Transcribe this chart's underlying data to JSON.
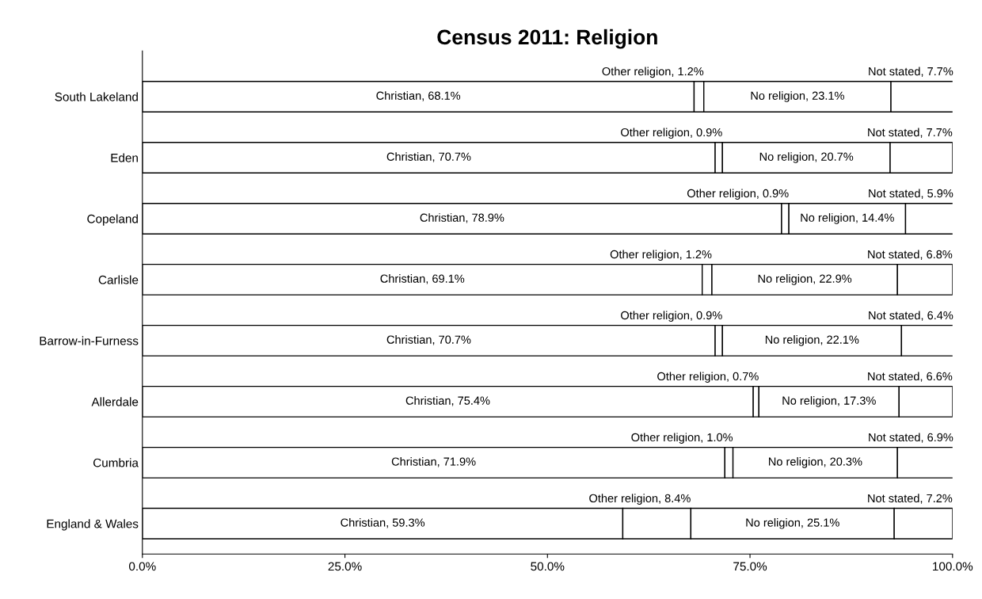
{
  "chart_data": {
    "type": "bar",
    "orientation": "horizontal",
    "stacked": true,
    "title": "Census 2011: Religion",
    "categories": [
      "South Lakeland",
      "Eden",
      "Copeland",
      "Carlisle",
      "Barrow-in-Furness",
      "Allerdale",
      "Cumbria",
      "England & Wales"
    ],
    "series": [
      {
        "color": "#ffffff",
        "values": [
          68.1,
          70.7,
          78.9,
          69.1,
          70.7,
          75.4,
          71.9,
          59.3
        ],
        "value_labels": [
          "Christian, 68.1%",
          "Christian, 70.7%",
          "Christian, 78.9%",
          "Christian, 69.1%",
          "Christian, 70.7%",
          "Christian, 75.4%",
          "Christian, 71.9%",
          "Christian, 59.3%"
        ]
      },
      {
        "color": "#ffffff",
        "values": [
          1.2,
          0.9,
          0.9,
          1.2,
          0.9,
          0.7,
          1.0,
          8.4
        ],
        "value_labels": [
          "Other religion, 1.2%",
          "Other religion, 0.9%",
          "Other religion, 0.9%",
          "Other religion, 1.2%",
          "Other religion, 0.9%",
          "Other religion, 0.7%",
          "Other religion, 1.0%",
          "Other religion, 8.4%"
        ]
      },
      {
        "color": "#ffffff",
        "values": [
          23.1,
          20.7,
          14.4,
          22.9,
          22.1,
          17.3,
          20.3,
          25.1
        ],
        "value_labels": [
          "No religion, 23.1%",
          "No religion, 20.7%",
          "No religion, 14.4%",
          "No religion, 22.9%",
          "No religion, 22.1%",
          "No religion, 17.3%",
          "No religion, 20.3%",
          "No religion, 25.1%"
        ]
      },
      {
        "color": "#ffffff",
        "values": [
          7.7,
          7.7,
          5.9,
          6.8,
          6.4,
          6.6,
          6.9,
          7.2
        ],
        "value_labels": [
          "Not stated, 7.7%",
          "Not stated, 7.7%",
          "Not stated, 5.9%",
          "Not stated, 6.8%",
          "Not stated, 6.4%",
          "Not stated, 6.6%",
          "Not stated, 6.9%",
          "Not stated, 7.2%"
        ]
      }
    ],
    "xlim": [
      0,
      100
    ],
    "xticks": [
      {
        "value": 0,
        "label": "0.0%"
      },
      {
        "value": 25,
        "label": "25.0%"
      },
      {
        "value": 50,
        "label": "50.0%"
      },
      {
        "value": 75,
        "label": "75.0%"
      },
      {
        "value": 100,
        "label": "100.0%"
      }
    ],
    "grid": false,
    "legend": false
  }
}
